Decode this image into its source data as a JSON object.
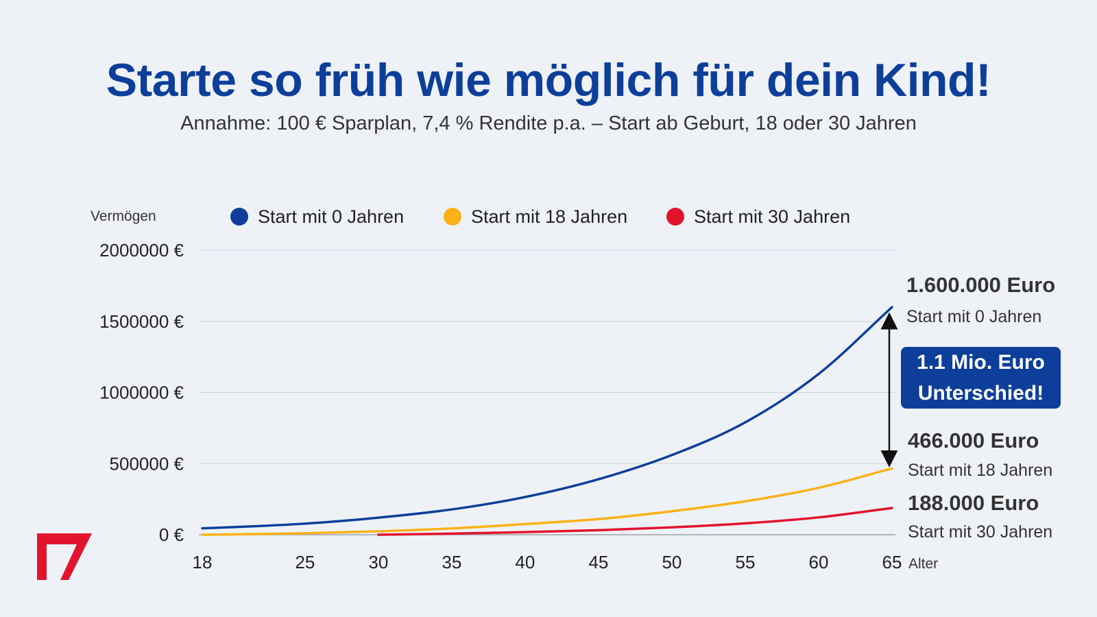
{
  "title": "Starte so früh wie möglich für dein Kind!",
  "subtitle": "Annahme: 100 € Sparplan, 7,4 % Rendite p.a. – Start ab Geburt, 18 oder 30 Jahren",
  "colors": {
    "blue": "#0d3f9a",
    "yellow": "#fbb117",
    "red": "#e2142d",
    "grid": "#cfd3da"
  },
  "chart_data": {
    "type": "line",
    "ylabel": "Vermögen",
    "xlabel": "Alter",
    "ylim": [
      0,
      2000000
    ],
    "xlim": [
      18,
      65
    ],
    "y_ticks": [
      0,
      500000,
      1000000,
      1500000,
      2000000
    ],
    "y_tick_labels": [
      "0 €",
      "500000 €",
      "1000000 €",
      "1500000 €",
      "2000000 €"
    ],
    "x_ticks": [
      18,
      25,
      30,
      35,
      40,
      45,
      50,
      55,
      60,
      65
    ],
    "legend_position": "top",
    "grid": true,
    "series": [
      {
        "name": "Start mit 0 Jahren",
        "color": "#0d3f9a",
        "x": [
          18,
          20,
          25,
          30,
          35,
          40,
          45,
          50,
          55,
          60,
          65
        ],
        "y": [
          45000,
          53000,
          78000,
          120000,
          178000,
          265000,
          390000,
          560000,
          790000,
          1130000,
          1600000
        ]
      },
      {
        "name": "Start mit 18 Jahren",
        "color": "#fbb117",
        "x": [
          18,
          20,
          25,
          30,
          35,
          40,
          45,
          50,
          55,
          60,
          65
        ],
        "y": [
          0,
          2600,
          10500,
          24000,
          44000,
          75000,
          110000,
          165000,
          235000,
          330000,
          466000
        ]
      },
      {
        "name": "Start mit 30 Jahren",
        "color": "#e2142d",
        "x": [
          30,
          35,
          40,
          45,
          50,
          55,
          60,
          65
        ],
        "y": [
          0,
          8000,
          18500,
          32000,
          52000,
          80000,
          122000,
          188000
        ]
      }
    ],
    "annotations": {
      "end_labels": [
        {
          "value": "1.600.000 Euro",
          "sub": "Start mit 0 Jahren"
        },
        {
          "value": "466.000 Euro",
          "sub": "Start mit 18 Jahren"
        },
        {
          "value": "188.000 Euro",
          "sub": "Start mit 30 Jahren"
        }
      ],
      "difference": {
        "line1": "1.1 Mio. Euro",
        "line2": "Unterschied!"
      }
    }
  }
}
